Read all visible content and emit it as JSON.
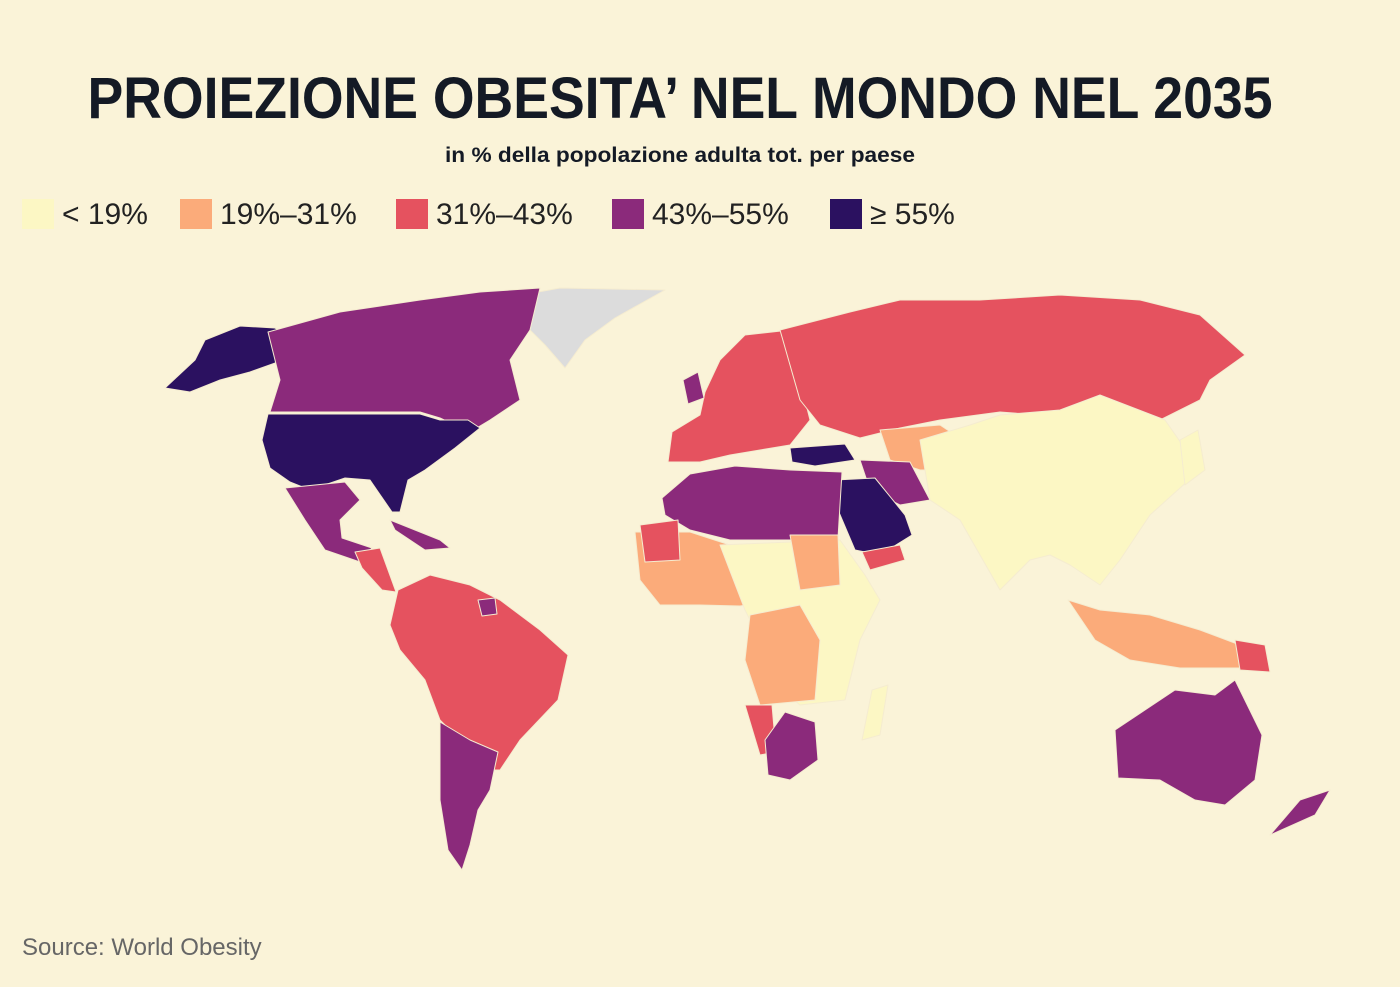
{
  "title": "PROIEZIONE OBESITA’ NEL MONDO NEL 2035",
  "subtitle": "in % della popolazione adulta tot. per paese",
  "legend": [
    {
      "label": "< 19%",
      "color": "#fcf7c4"
    },
    {
      "label": "19%–31%",
      "color": "#fbab7a"
    },
    {
      "label": "31%–43%",
      "color": "#e5525f"
    },
    {
      "label": "43%–55%",
      "color": "#8b2a7b"
    },
    {
      "label": "≥ 55%",
      "color": "#2b1160"
    }
  ],
  "source": "Source: World Obesity"
}
